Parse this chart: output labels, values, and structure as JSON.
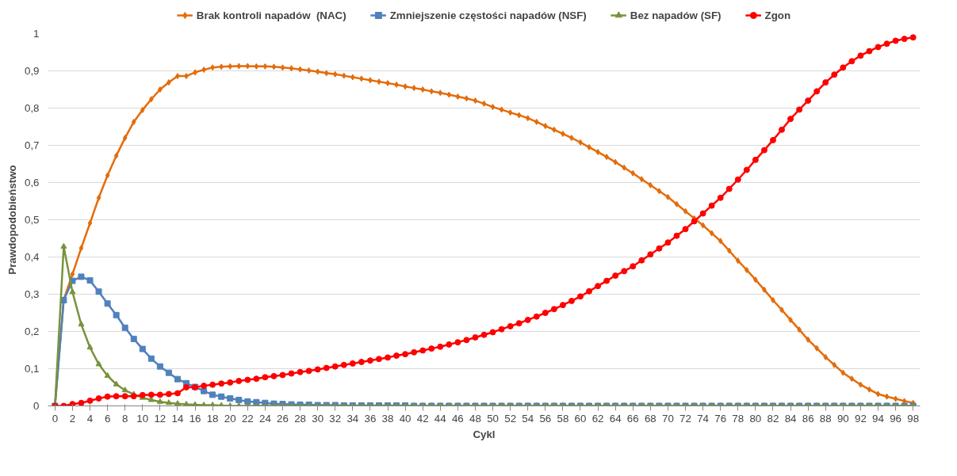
{
  "chart_data": {
    "type": "line",
    "xlabel": "Cykl",
    "ylabel": "Prawdopodobieństwo",
    "legend": "top",
    "grid": "y",
    "x": [
      0,
      1,
      2,
      3,
      4,
      5,
      6,
      7,
      8,
      9,
      10,
      11,
      12,
      13,
      14,
      15,
      16,
      17,
      18,
      19,
      20,
      21,
      22,
      23,
      24,
      25,
      26,
      27,
      28,
      29,
      30,
      31,
      32,
      33,
      34,
      35,
      36,
      37,
      38,
      39,
      40,
      41,
      42,
      43,
      44,
      45,
      46,
      47,
      48,
      49,
      50,
      51,
      52,
      53,
      54,
      55,
      56,
      57,
      58,
      59,
      60,
      61,
      62,
      63,
      64,
      65,
      66,
      67,
      68,
      69,
      70,
      71,
      72,
      73,
      74,
      75,
      76,
      77,
      78,
      79,
      80,
      81,
      82,
      83,
      84,
      85,
      86,
      87,
      88,
      89,
      90,
      91,
      92,
      93,
      94,
      95,
      96,
      97,
      98
    ],
    "xlim": [
      -0.8,
      98.8
    ],
    "xticks": [
      0,
      2,
      4,
      6,
      8,
      10,
      12,
      14,
      16,
      18,
      20,
      22,
      24,
      26,
      28,
      30,
      32,
      34,
      36,
      38,
      40,
      42,
      44,
      46,
      48,
      50,
      52,
      54,
      56,
      58,
      60,
      62,
      64,
      66,
      68,
      70,
      72,
      74,
      76,
      78,
      80,
      82,
      84,
      86,
      88,
      90,
      92,
      94,
      96,
      98
    ],
    "ylim": [
      0,
      1
    ],
    "yticks": [
      0,
      {
        "value": 0.1,
        "label": "0,1"
      },
      {
        "value": 0.2,
        "label": "0,2"
      },
      {
        "value": 0.3,
        "label": "0,3"
      },
      {
        "value": 0.4,
        "label": "0,4"
      },
      {
        "value": 0.5,
        "label": "0,5"
      },
      {
        "value": 0.6,
        "label": "0,6"
      },
      {
        "value": 0.7,
        "label": "0,7"
      },
      {
        "value": 0.8,
        "label": "0,8"
      },
      {
        "value": 0.9,
        "label": "0,9"
      },
      1
    ],
    "series": [
      {
        "name": "Brak kontroli napadów  (NAC)",
        "color": "#e46c0a",
        "marker": "diamond",
        "values": [
          0,
          0.286,
          0.354,
          0.424,
          0.491,
          0.559,
          0.619,
          0.672,
          0.72,
          0.763,
          0.795,
          0.824,
          0.85,
          0.869,
          0.886,
          0.886,
          0.896,
          0.903,
          0.909,
          0.911,
          0.912,
          0.913,
          0.913,
          0.912,
          0.912,
          0.911,
          0.909,
          0.907,
          0.904,
          0.901,
          0.898,
          0.894,
          0.891,
          0.887,
          0.883,
          0.879,
          0.875,
          0.871,
          0.867,
          0.863,
          0.858,
          0.854,
          0.85,
          0.845,
          0.841,
          0.836,
          0.831,
          0.826,
          0.82,
          0.812,
          0.803,
          0.796,
          0.788,
          0.781,
          0.773,
          0.763,
          0.752,
          0.742,
          0.731,
          0.72,
          0.708,
          0.695,
          0.682,
          0.669,
          0.655,
          0.64,
          0.625,
          0.609,
          0.593,
          0.577,
          0.561,
          0.542,
          0.523,
          0.504,
          0.485,
          0.464,
          0.443,
          0.417,
          0.39,
          0.365,
          0.339,
          0.312,
          0.284,
          0.258,
          0.231,
          0.205,
          0.178,
          0.155,
          0.131,
          0.11,
          0.089,
          0.073,
          0.057,
          0.044,
          0.032,
          0.025,
          0.019,
          0.013,
          0.008
        ]
      },
      {
        "name": "Zmniejszenie częstości napadów (NSF)",
        "color": "#4f81bd",
        "marker": "square",
        "values": [
          0,
          0.284,
          0.336,
          0.347,
          0.337,
          0.307,
          0.275,
          0.244,
          0.21,
          0.18,
          0.153,
          0.127,
          0.106,
          0.089,
          0.072,
          0.061,
          0.051,
          0.04,
          0.03,
          0.025,
          0.02,
          0.016,
          0.012,
          0.01,
          0.008,
          0.006,
          0.005,
          0.004,
          0.003,
          0.003,
          0.002,
          0.002,
          0.002,
          0.001,
          0.001,
          0.001,
          0.001,
          0.001,
          0.001,
          0.001,
          0.001,
          0,
          0,
          0,
          0,
          0,
          0,
          0,
          0,
          0,
          0,
          0,
          0,
          0,
          0,
          0,
          0,
          0,
          0,
          0,
          0,
          0,
          0,
          0,
          0,
          0,
          0,
          0,
          0,
          0,
          0,
          0,
          0,
          0,
          0,
          0,
          0,
          0,
          0,
          0,
          0,
          0,
          0,
          0,
          0,
          0,
          0,
          0,
          0,
          0,
          0,
          0,
          0,
          0,
          0,
          0,
          0,
          0,
          0
        ]
      },
      {
        "name": "Bez napadów (SF)",
        "color": "#77933c",
        "marker": "triangle",
        "values": [
          0,
          0.428,
          0.306,
          0.219,
          0.157,
          0.112,
          0.081,
          0.058,
          0.042,
          0.031,
          0.022,
          0.016,
          0.011,
          0.008,
          0.006,
          0.004,
          0.003,
          0.002,
          0.002,
          0.001,
          0,
          0,
          0,
          0,
          0,
          0,
          0,
          0,
          0,
          0,
          0,
          0,
          0,
          0,
          0,
          0,
          0,
          0,
          0,
          0,
          0,
          0,
          0,
          0,
          0,
          0,
          0,
          0,
          0,
          0,
          0,
          0,
          0,
          0,
          0,
          0,
          0,
          0,
          0,
          0,
          0,
          0,
          0,
          0,
          0,
          0,
          0,
          0,
          0,
          0,
          0,
          0,
          0,
          0,
          0,
          0,
          0,
          0,
          0,
          0,
          0,
          0,
          0,
          0,
          0,
          0,
          0,
          0,
          0,
          0,
          0,
          0,
          0,
          0,
          0,
          0,
          0,
          0,
          0
        ]
      },
      {
        "name": "Zgon",
        "color": "#ff0000",
        "marker": "circle",
        "values": [
          0,
          0,
          0.005,
          0.008,
          0.014,
          0.02,
          0.025,
          0.026,
          0.026,
          0.026,
          0.029,
          0.03,
          0.03,
          0.032,
          0.034,
          0.05,
          0.05,
          0.054,
          0.057,
          0.06,
          0.063,
          0.067,
          0.07,
          0.073,
          0.077,
          0.08,
          0.083,
          0.087,
          0.091,
          0.094,
          0.098,
          0.102,
          0.106,
          0.11,
          0.114,
          0.118,
          0.122,
          0.126,
          0.13,
          0.135,
          0.139,
          0.144,
          0.149,
          0.154,
          0.159,
          0.165,
          0.171,
          0.177,
          0.184,
          0.191,
          0.198,
          0.206,
          0.214,
          0.222,
          0.231,
          0.24,
          0.25,
          0.26,
          0.271,
          0.282,
          0.294,
          0.308,
          0.322,
          0.336,
          0.35,
          0.362,
          0.375,
          0.391,
          0.407,
          0.423,
          0.439,
          0.457,
          0.475,
          0.496,
          0.517,
          0.538,
          0.559,
          0.583,
          0.608,
          0.634,
          0.661,
          0.687,
          0.714,
          0.742,
          0.771,
          0.796,
          0.82,
          0.845,
          0.869,
          0.89,
          0.909,
          0.926,
          0.941,
          0.953,
          0.964,
          0.973,
          0.981,
          0.986,
          0.99
        ]
      }
    ]
  }
}
